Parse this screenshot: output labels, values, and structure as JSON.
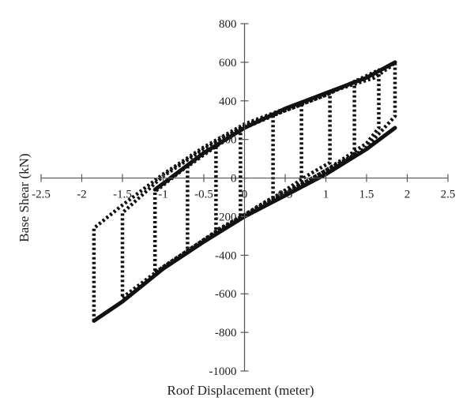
{
  "chart_data": {
    "type": "line",
    "title": "",
    "xlabel": "Roof Displacement (meter)",
    "ylabel": "Base Shear (kN)",
    "xlim": [
      -2.5,
      2.5
    ],
    "ylim": [
      -1000,
      800
    ],
    "x_ticks": [
      -2.5,
      -2,
      -1.5,
      -1,
      -0.5,
      0,
      0.5,
      1,
      1.5,
      2,
      2.5
    ],
    "x_tick_labels": [
      "-2.5",
      "-2",
      "-1.5",
      "-1",
      "-0.5",
      "0",
      "0.5",
      "1",
      "1.5",
      "2",
      "2.5"
    ],
    "y_ticks": [
      -1000,
      -800,
      -600,
      -400,
      -200,
      0,
      200,
      400,
      600,
      800
    ],
    "y_tick_labels": [
      "-1000",
      "-800",
      "-600",
      "-400",
      "-200",
      "0",
      "200",
      "400",
      "600",
      "800"
    ],
    "grid": false,
    "legend": "none",
    "line_color": "#111111",
    "series": [
      {
        "style": "dotted-hysteresis-loops",
        "loops": [
          {
            "x": [
              -1.85,
              -1.5,
              -1.0,
              -0.5,
              0.0,
              0.5,
              1.0,
              1.5,
              1.85,
              1.85,
              1.8,
              1.6,
              1.0,
              0.5,
              0.0,
              -0.5,
              -1.0,
              -1.5,
              -1.85,
              -1.85
            ],
            "y": [
              -740,
              -640,
              -470,
              -330,
              -200,
              -90,
              20,
              160,
              320,
              600,
              580,
              520,
              440,
              360,
              280,
              160,
              20,
              -140,
              -260,
              -740
            ]
          },
          {
            "x": [
              -1.5,
              -1.0,
              -0.5,
              0.0,
              0.5,
              1.0,
              1.5,
              1.65,
              1.65,
              1.0,
              0.5,
              0.0,
              -0.5,
              -1.0,
              -1.5,
              -1.5
            ],
            "y": [
              -620,
              -460,
              -320,
              -190,
              -80,
              40,
              180,
              260,
              560,
              430,
              350,
              270,
              150,
              10,
              -180,
              -620
            ]
          },
          {
            "x": [
              -1.1,
              -0.5,
              0.0,
              0.5,
              1.0,
              1.35,
              1.35,
              1.0,
              0.5,
              0.0,
              -0.5,
              -1.1,
              -1.1
            ],
            "y": [
              -490,
              -320,
              -190,
              -80,
              40,
              120,
              500,
              430,
              350,
              260,
              130,
              -70,
              -490
            ]
          },
          {
            "x": [
              -0.7,
              -0.3,
              0.0,
              0.4,
              0.8,
              1.05,
              1.05,
              0.6,
              0.2,
              0.0,
              -0.4,
              -0.7,
              -0.7
            ],
            "y": [
              -380,
              -260,
              -190,
              -90,
              20,
              80,
              440,
              370,
              300,
              260,
              150,
              60,
              -380
            ]
          },
          {
            "x": [
              -0.35,
              0.0,
              0.4,
              0.7,
              0.7,
              0.3,
              0.0,
              -0.35,
              -0.35
            ],
            "y": [
              -290,
              -190,
              -90,
              -20,
              380,
              320,
              270,
              180,
              -290
            ]
          },
          {
            "x": [
              -0.05,
              0.15,
              0.35,
              0.35,
              0.1,
              -0.05,
              -0.05
            ],
            "y": [
              -210,
              -150,
              -100,
              330,
              290,
              250,
              -210
            ]
          }
        ]
      },
      {
        "style": "solid-envelope",
        "x": [
          -1.85,
          -1.5,
          -1.0,
          -0.5,
          0.0,
          0.5,
          1.0,
          1.5,
          1.85
        ],
        "y": [
          -740,
          -640,
          -470,
          -330,
          -200,
          -90,
          20,
          150,
          260
        ]
      },
      {
        "style": "solid-envelope",
        "x": [
          -1.1,
          -0.5,
          0.0,
          0.5,
          1.0,
          1.5,
          1.85
        ],
        "y": [
          -60,
          130,
          260,
          360,
          440,
          520,
          600
        ]
      }
    ]
  }
}
